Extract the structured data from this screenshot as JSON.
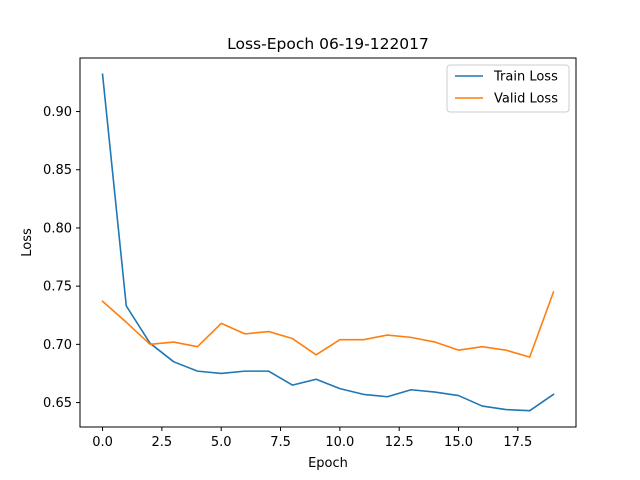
{
  "chart_data": {
    "type": "line",
    "title": "Loss-Epoch 06-19-122017",
    "xlabel": "Epoch",
    "ylabel": "Loss",
    "xlim": [
      -0.95,
      19.95
    ],
    "ylim": [
      0.629,
      0.946
    ],
    "xticks": [
      0.0,
      2.5,
      5.0,
      7.5,
      10.0,
      12.5,
      15.0,
      17.5
    ],
    "xtick_labels": [
      "0.0",
      "2.5",
      "5.0",
      "7.5",
      "10.0",
      "12.5",
      "15.0",
      "17.5"
    ],
    "yticks": [
      0.65,
      0.7,
      0.75,
      0.8,
      0.85,
      0.9
    ],
    "ytick_labels": [
      "0.65",
      "0.70",
      "0.75",
      "0.80",
      "0.85",
      "0.90"
    ],
    "grid": false,
    "legend_position": "top-right",
    "x": [
      0,
      1,
      2,
      3,
      4,
      5,
      6,
      7,
      8,
      9,
      10,
      11,
      12,
      13,
      14,
      15,
      16,
      17,
      18,
      19
    ],
    "series": [
      {
        "name": "Train Loss",
        "color": "#1f77b4",
        "values": [
          0.932,
          0.733,
          0.701,
          0.685,
          0.677,
          0.675,
          0.677,
          0.677,
          0.665,
          0.67,
          0.662,
          0.657,
          0.655,
          0.661,
          0.659,
          0.656,
          0.647,
          0.644,
          0.643,
          0.657
        ]
      },
      {
        "name": "Valid Loss",
        "color": "#ff7f0e",
        "values": [
          0.737,
          0.719,
          0.7,
          0.702,
          0.698,
          0.718,
          0.709,
          0.711,
          0.705,
          0.691,
          0.704,
          0.704,
          0.708,
          0.706,
          0.702,
          0.695,
          0.698,
          0.695,
          0.689,
          0.745
        ]
      }
    ]
  }
}
